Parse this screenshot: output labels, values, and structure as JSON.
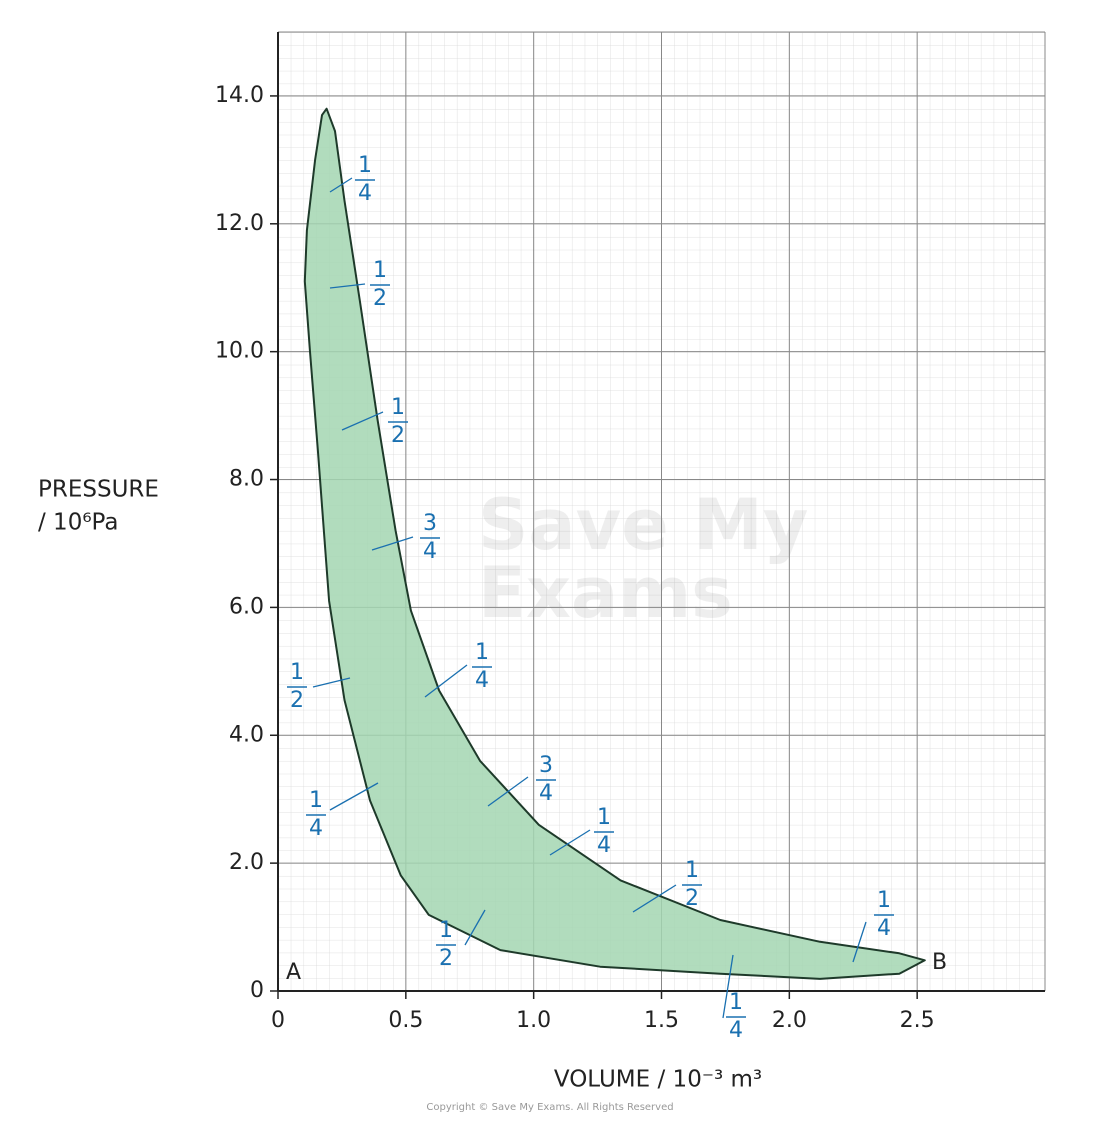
{
  "chart_data": {
    "type": "line",
    "x_label": "VOLUME / 10⁻³ m³",
    "y_label_lines": [
      "PRESSURE",
      "/ 10⁶Pa"
    ],
    "x": [
      0.19,
      0.223,
      0.26,
      0.32,
      0.39,
      0.46,
      0.52,
      0.63,
      0.79,
      1.02,
      1.34,
      1.73,
      2.12,
      2.43,
      2.53,
      2.43,
      2.12,
      1.73,
      1.26,
      0.87,
      0.59,
      0.48,
      0.36,
      0.26,
      0.2,
      0.156,
      0.125,
      0.105,
      0.113,
      0.145,
      0.172
    ],
    "series": [
      {
        "color": "#1e3a2a",
        "fill": "#a3d6b2",
        "values": [
          13.8,
          13.45,
          12.36,
          10.8,
          8.92,
          7.2,
          5.95,
          4.7,
          3.6,
          2.6,
          1.73,
          1.11,
          0.77,
          0.59,
          0.48,
          0.27,
          0.19,
          0.27,
          0.38,
          0.64,
          1.19,
          1.81,
          2.98,
          4.55,
          6.1,
          8.45,
          10.0,
          11.1,
          11.9,
          13.0,
          13.7
        ]
      }
    ],
    "xlim": [
      0,
      3
    ],
    "ylim": [
      0,
      15
    ],
    "xticks": [
      0,
      0.5,
      {
        "value": 1,
        "label": "1.0"
      },
      1.5,
      {
        "value": 2,
        "label": "2.0"
      },
      2.5
    ],
    "yticks": [
      0,
      {
        "value": 2,
        "label": "2.0"
      },
      {
        "value": 4,
        "label": "4.0"
      },
      {
        "value": 6,
        "label": "6.0"
      },
      {
        "value": 8,
        "label": "8.0"
      },
      {
        "value": 10,
        "label": "10.0"
      },
      {
        "value": 12,
        "label": "12.0"
      },
      {
        "value": 14,
        "label": "14.0"
      }
    ],
    "grid": true,
    "annotations": [
      {
        "numerator": "1",
        "denominator": "4"
      },
      {
        "numerator": "1",
        "denominator": "2"
      },
      {
        "numerator": "1",
        "denominator": "2"
      },
      {
        "numerator": "3",
        "denominator": "4"
      },
      {
        "numerator": "1",
        "denominator": "2"
      },
      {
        "numerator": "1",
        "denominator": "4"
      },
      {
        "numerator": "1",
        "denominator": "4"
      },
      {
        "numerator": "3",
        "denominator": "4"
      },
      {
        "numerator": "1",
        "denominator": "4"
      },
      {
        "numerator": "1",
        "denominator": "2"
      },
      {
        "numerator": "1",
        "denominator": "2"
      },
      {
        "numerator": "1",
        "denominator": "4"
      },
      {
        "numerator": "1",
        "denominator": "4"
      }
    ],
    "point_labels": [
      "A",
      "B"
    ],
    "watermark": [
      "Save My",
      "Exams"
    ],
    "copyright": "Copyright © Save My Exams. All Rights Reserved"
  }
}
